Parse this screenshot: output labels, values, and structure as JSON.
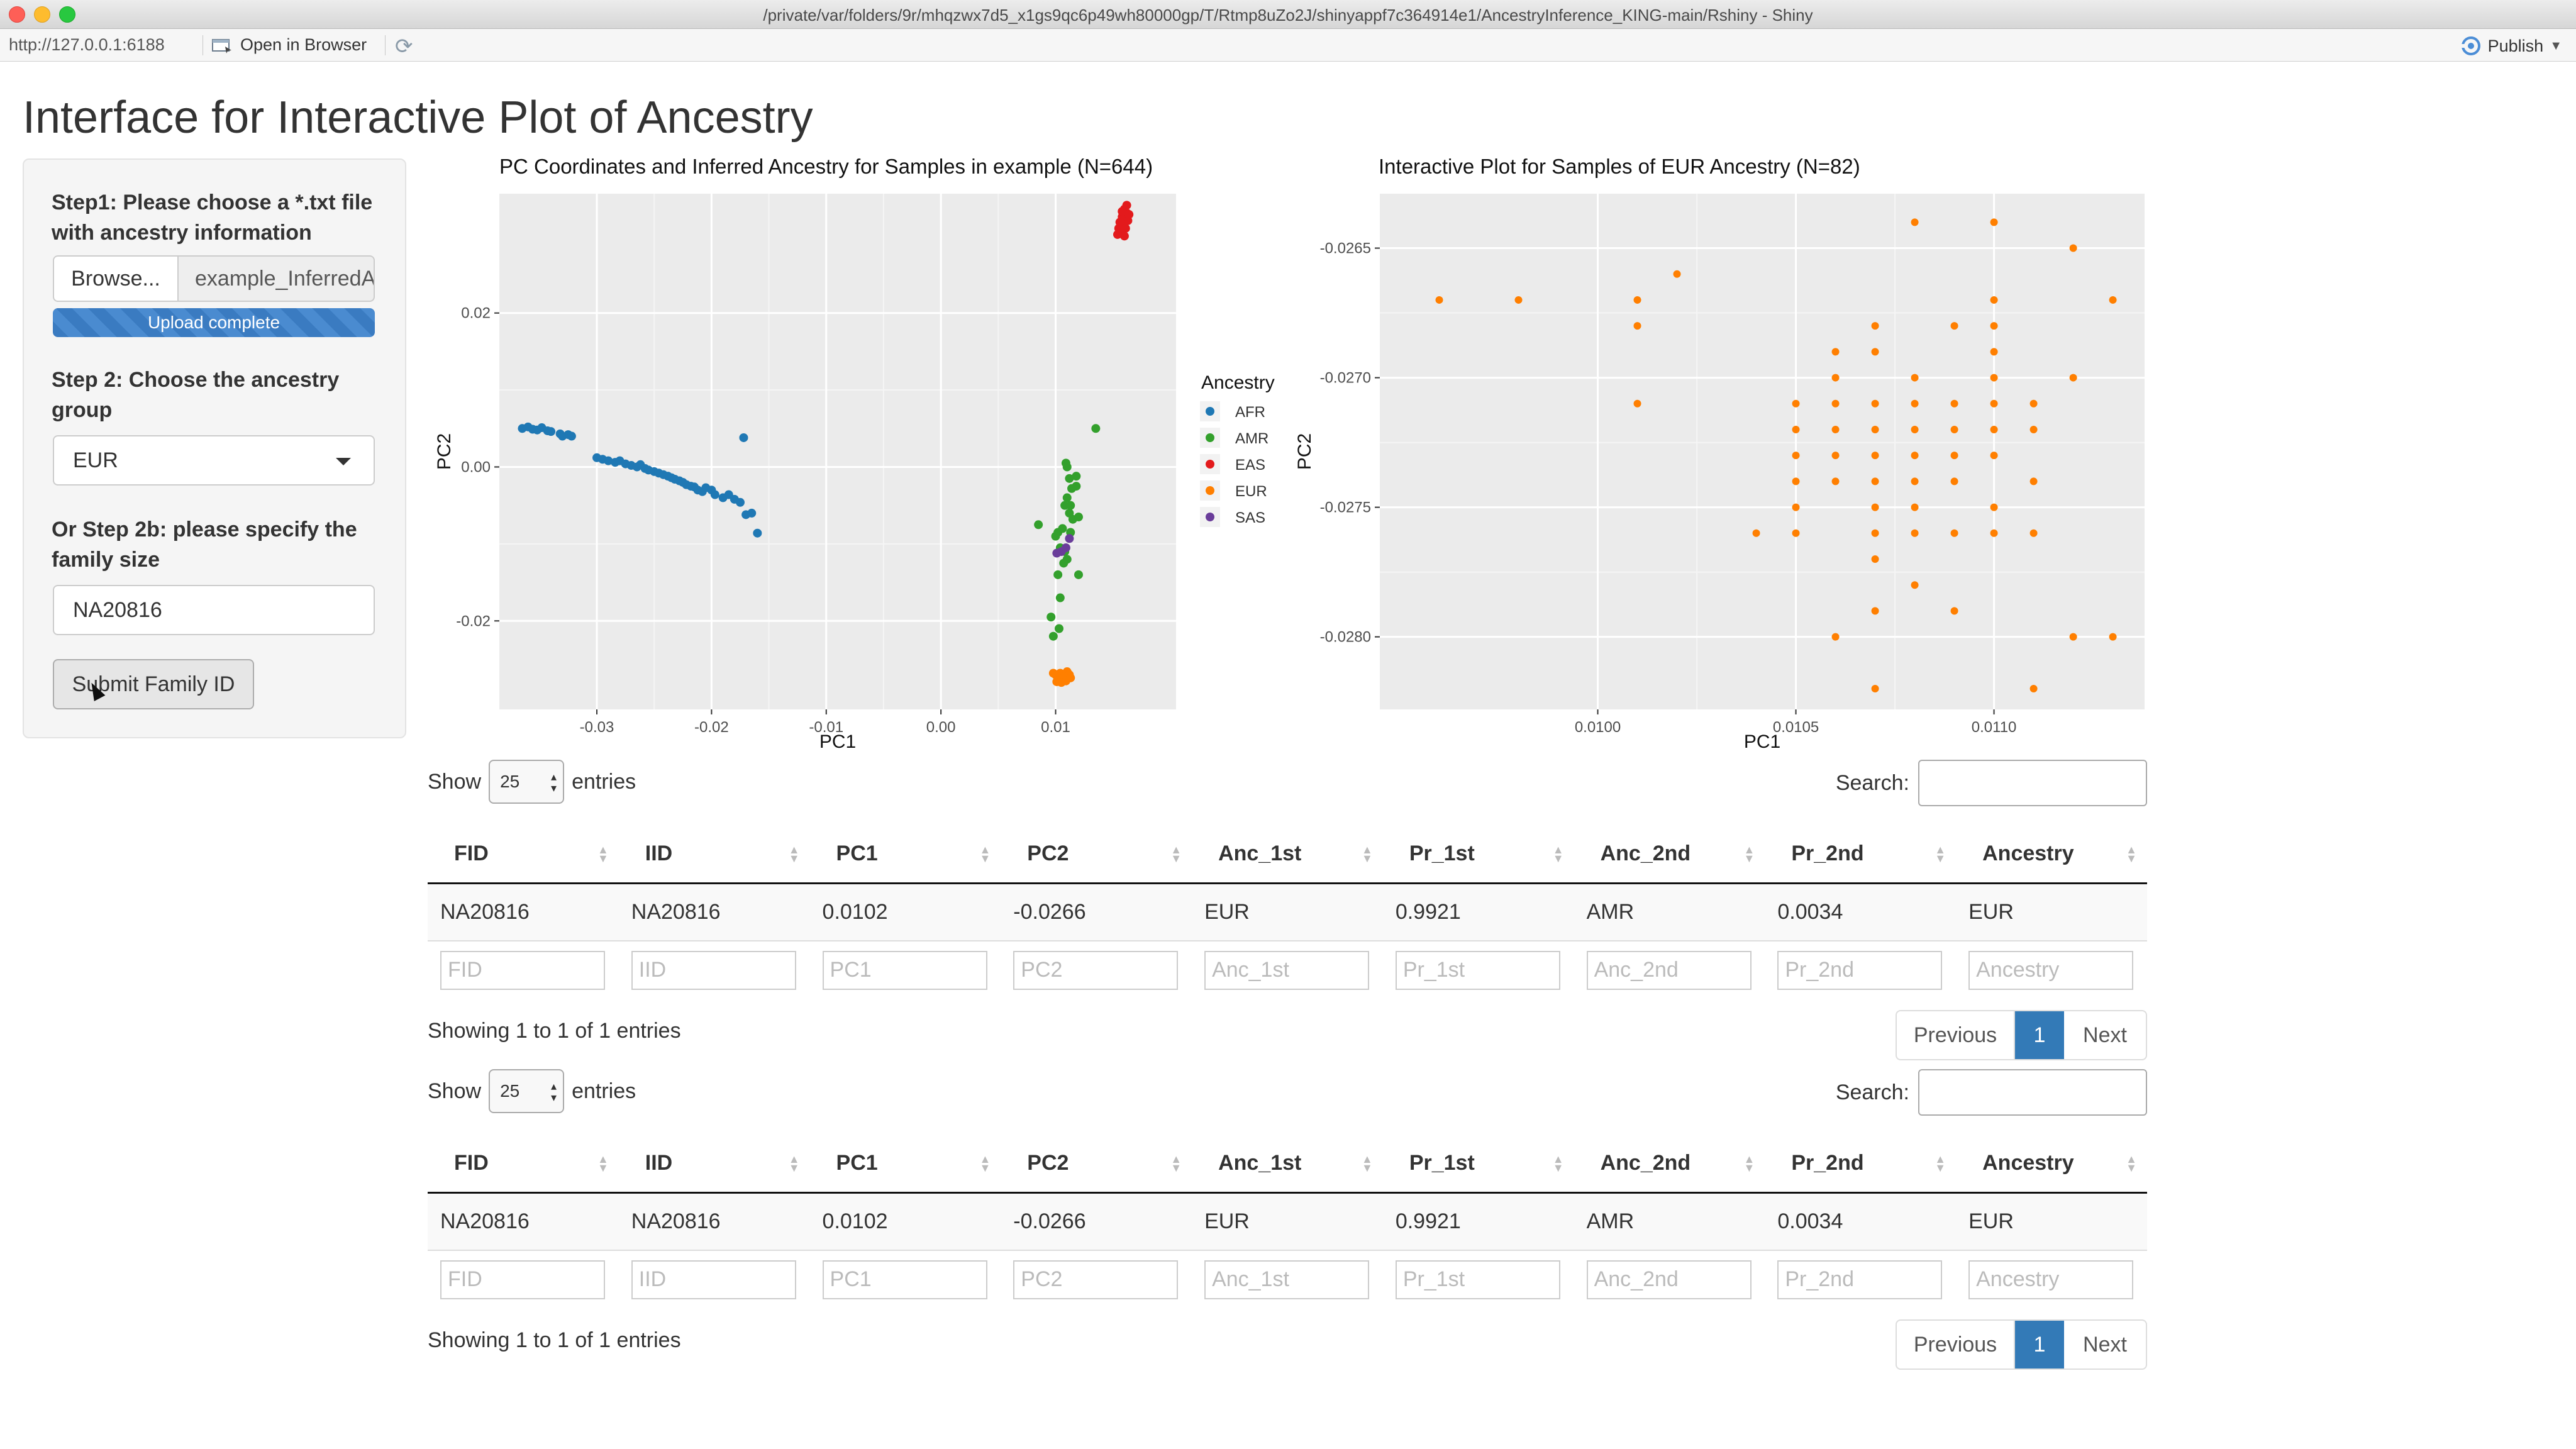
{
  "window": {
    "title": "/private/var/folders/9r/mhqzwx7d5_x1gs9qc6p49wh80000gp/T/Rtmp8uZo2J/shinyappf7c364914e1/AncestryInference_KING-main/Rshiny - Shiny"
  },
  "toolbar": {
    "url": "http://127.0.0.1:6188",
    "open_in_browser": "Open in Browser",
    "publish": "Publish"
  },
  "page": {
    "title": "Interface for Interactive Plot of Ancestry"
  },
  "sidebar": {
    "step1_label": "Step1: Please choose a *.txt file with ancestry information",
    "browse_label": "Browse...",
    "file_name": "example_InferredAncestry.txt",
    "upload_status": "Upload complete",
    "step2_label": "Step 2: Choose the ancestry group",
    "ancestry_selected": "EUR",
    "step2b_label": "Or Step 2b: please specify the family size",
    "family_id_value": "NA20816",
    "submit_label": "Submit Family ID"
  },
  "colors": {
    "AFR": "#1f78b4",
    "AMR": "#33a02c",
    "EAS": "#e31a1c",
    "EUR": "#ff7f00",
    "SAS": "#6a3d9a",
    "panel_bg": "#ebebeb",
    "accent": "#337ab7"
  },
  "chart_data": [
    {
      "type": "scatter",
      "title": "PC Coordinates and Inferred Ancestry for Samples in example (N=644)",
      "xlabel": "PC1",
      "ylabel": "PC2",
      "xlim": [
        -0.0385,
        0.0205
      ],
      "ylim": [
        -0.0315,
        0.0355
      ],
      "xticks": [
        -0.03,
        -0.02,
        -0.01,
        0.0,
        0.01
      ],
      "xtick_labels": [
        "-0.03",
        "-0.02",
        "-0.01",
        "0.00",
        "0.01"
      ],
      "yticks": [
        0.02,
        0.0,
        -0.02
      ],
      "ytick_labels": [
        "0.02",
        "0.00",
        "-0.02"
      ],
      "grid": true,
      "legend_title": "Ancestry",
      "legend_position": "right",
      "series": [
        {
          "name": "AFR",
          "points": [
            [
              -0.0365,
              0.005
            ],
            [
              -0.036,
              0.0052
            ],
            [
              -0.0356,
              0.0049
            ],
            [
              -0.0352,
              0.0048
            ],
            [
              -0.0348,
              0.0051
            ],
            [
              -0.0343,
              0.0047
            ],
            [
              -0.034,
              0.0046
            ],
            [
              -0.0332,
              0.0043
            ],
            [
              -0.033,
              0.004
            ],
            [
              -0.0325,
              0.0042
            ],
            [
              -0.0322,
              0.004
            ],
            [
              -0.03,
              0.0012
            ],
            [
              -0.0295,
              0.001
            ],
            [
              -0.029,
              0.0008
            ],
            [
              -0.0284,
              0.0006
            ],
            [
              -0.028,
              0.0008
            ],
            [
              -0.0275,
              0.0004
            ],
            [
              -0.027,
              0.0002
            ],
            [
              -0.0265,
              0.0
            ],
            [
              -0.0262,
              0.0003
            ],
            [
              -0.0258,
              -0.0002
            ],
            [
              -0.0255,
              -0.0004
            ],
            [
              -0.025,
              -0.0006
            ],
            [
              -0.0246,
              -0.0008
            ],
            [
              -0.0242,
              -0.001
            ],
            [
              -0.0238,
              -0.0012
            ],
            [
              -0.0235,
              -0.0014
            ],
            [
              -0.0232,
              -0.0016
            ],
            [
              -0.0228,
              -0.0018
            ],
            [
              -0.0225,
              -0.002
            ],
            [
              -0.0222,
              -0.0023
            ],
            [
              -0.0218,
              -0.0025
            ],
            [
              -0.0215,
              -0.0026
            ],
            [
              -0.0212,
              -0.003
            ],
            [
              -0.0208,
              -0.0032
            ],
            [
              -0.0205,
              -0.0027
            ],
            [
              -0.02,
              -0.003
            ],
            [
              -0.0197,
              -0.0036
            ],
            [
              -0.019,
              -0.004
            ],
            [
              -0.0185,
              -0.0036
            ],
            [
              -0.018,
              -0.0042
            ],
            [
              -0.0175,
              -0.0046
            ],
            [
              -0.017,
              -0.0062
            ],
            [
              -0.0165,
              -0.006
            ],
            [
              -0.016,
              -0.0086
            ],
            [
              -0.0172,
              0.0038
            ]
          ]
        },
        {
          "name": "AMR",
          "points": [
            [
              0.0135,
              0.005
            ],
            [
              0.011,
              0.0
            ],
            [
              0.0112,
              -0.0015
            ],
            [
              0.0118,
              -0.0012
            ],
            [
              0.0108,
              -0.005
            ],
            [
              0.0115,
              -0.0068
            ],
            [
              0.012,
              -0.0065
            ],
            [
              0.0113,
              -0.0085
            ],
            [
              0.011,
              -0.012
            ],
            [
              0.0104,
              -0.017
            ],
            [
              0.0098,
              -0.022
            ],
            [
              0.0103,
              -0.021
            ],
            [
              0.0085,
              -0.0075
            ],
            [
              0.0108,
              -0.011
            ],
            [
              0.0102,
              -0.0085
            ],
            [
              0.011,
              -0.004
            ],
            [
              0.0118,
              -0.0025
            ],
            [
              0.0109,
              0.0005
            ],
            [
              0.0102,
              -0.014
            ],
            [
              0.0096,
              -0.0195
            ],
            [
              0.01,
              -0.009
            ],
            [
              0.0107,
              -0.0125
            ],
            [
              0.0112,
              -0.006
            ],
            [
              0.0106,
              -0.008
            ],
            [
              0.0114,
              -0.0028
            ],
            [
              0.0104,
              -0.0105
            ],
            [
              0.012,
              -0.014
            ],
            [
              0.0113,
              -0.005
            ]
          ]
        },
        {
          "name": "EAS",
          "points": [
            [
              0.016,
              0.0335
            ],
            [
              0.0162,
              0.033
            ],
            [
              0.0158,
              0.0325
            ],
            [
              0.0163,
              0.032
            ],
            [
              0.0159,
              0.0315
            ],
            [
              0.0161,
              0.031
            ],
            [
              0.0157,
              0.0305
            ],
            [
              0.0164,
              0.0328
            ],
            [
              0.0156,
              0.0318
            ],
            [
              0.016,
              0.03
            ],
            [
              0.0155,
              0.031
            ],
            [
              0.0162,
              0.034
            ],
            [
              0.0158,
              0.0332
            ],
            [
              0.0154,
              0.0302
            ]
          ]
        },
        {
          "name": "EUR",
          "points": [
            [
              0.01,
              -0.027
            ],
            [
              0.0104,
              -0.0268
            ],
            [
              0.0108,
              -0.0272
            ],
            [
              0.0106,
              -0.0276
            ],
            [
              0.011,
              -0.0266
            ],
            [
              0.0102,
              -0.0274
            ],
            [
              0.0112,
              -0.027
            ],
            [
              0.0098,
              -0.0268
            ],
            [
              0.0105,
              -0.028
            ],
            [
              0.0109,
              -0.0278
            ],
            [
              0.0101,
              -0.0279
            ],
            [
              0.0113,
              -0.0274
            ]
          ]
        },
        {
          "name": "SAS",
          "points": [
            [
              0.0105,
              -0.011
            ],
            [
              0.0109,
              -0.0105
            ],
            [
              0.0112,
              -0.0093
            ],
            [
              0.0101,
              -0.0112
            ]
          ]
        }
      ]
    },
    {
      "type": "scatter",
      "title": "Interactive Plot for Samples of EUR Ancestry (N=82)",
      "xlabel": "PC1",
      "ylabel": "PC2",
      "xlim": [
        0.00945,
        0.01138
      ],
      "ylim": [
        -0.02828,
        -0.02629
      ],
      "xticks": [
        0.01,
        0.0105,
        0.011
      ],
      "xtick_labels": [
        "0.0100",
        "0.0105",
        "0.0110"
      ],
      "yticks": [
        -0.0265,
        -0.027,
        -0.0275,
        -0.028
      ],
      "ytick_labels": [
        "-0.0265",
        "-0.0270",
        "-0.0275",
        "-0.0280"
      ],
      "grid": true,
      "series": [
        {
          "name": "EUR",
          "points": [
            [
              0.0096,
              -0.0267
            ],
            [
              0.0098,
              -0.0267
            ],
            [
              0.0101,
              -0.0267
            ],
            [
              0.0101,
              -0.0268
            ],
            [
              0.0101,
              -0.0271
            ],
            [
              0.0102,
              -0.0266
            ],
            [
              0.0104,
              -0.0276
            ],
            [
              0.0105,
              -0.0271
            ],
            [
              0.0105,
              -0.0272
            ],
            [
              0.0105,
              -0.0273
            ],
            [
              0.0105,
              -0.0274
            ],
            [
              0.0105,
              -0.0275
            ],
            [
              0.0105,
              -0.0276
            ],
            [
              0.0106,
              -0.027
            ],
            [
              0.0106,
              -0.0271
            ],
            [
              0.0106,
              -0.0272
            ],
            [
              0.0106,
              -0.0273
            ],
            [
              0.0106,
              -0.0274
            ],
            [
              0.0106,
              -0.0269
            ],
            [
              0.0106,
              -0.028
            ],
            [
              0.0107,
              -0.0268
            ],
            [
              0.0107,
              -0.0269
            ],
            [
              0.0107,
              -0.0271
            ],
            [
              0.0107,
              -0.0272
            ],
            [
              0.0107,
              -0.0273
            ],
            [
              0.0107,
              -0.0274
            ],
            [
              0.0107,
              -0.0275
            ],
            [
              0.0107,
              -0.0276
            ],
            [
              0.0107,
              -0.0277
            ],
            [
              0.0107,
              -0.0279
            ],
            [
              0.0107,
              -0.0282
            ],
            [
              0.0108,
              -0.0264
            ],
            [
              0.0108,
              -0.027
            ],
            [
              0.0108,
              -0.0271
            ],
            [
              0.0108,
              -0.0272
            ],
            [
              0.0108,
              -0.0273
            ],
            [
              0.0108,
              -0.0274
            ],
            [
              0.0108,
              -0.0275
            ],
            [
              0.0108,
              -0.0276
            ],
            [
              0.0108,
              -0.0278
            ],
            [
              0.0109,
              -0.0268
            ],
            [
              0.0109,
              -0.0271
            ],
            [
              0.0109,
              -0.0272
            ],
            [
              0.0109,
              -0.0273
            ],
            [
              0.0109,
              -0.0274
            ],
            [
              0.0109,
              -0.0276
            ],
            [
              0.0109,
              -0.0279
            ],
            [
              0.011,
              -0.0264
            ],
            [
              0.011,
              -0.0267
            ],
            [
              0.011,
              -0.0268
            ],
            [
              0.011,
              -0.0269
            ],
            [
              0.011,
              -0.027
            ],
            [
              0.011,
              -0.0271
            ],
            [
              0.011,
              -0.0272
            ],
            [
              0.011,
              -0.0273
            ],
            [
              0.011,
              -0.0275
            ],
            [
              0.011,
              -0.0276
            ],
            [
              0.0111,
              -0.0271
            ],
            [
              0.0111,
              -0.0272
            ],
            [
              0.0111,
              -0.0274
            ],
            [
              0.0111,
              -0.0276
            ],
            [
              0.0111,
              -0.0282
            ],
            [
              0.0112,
              -0.0265
            ],
            [
              0.0112,
              -0.027
            ],
            [
              0.0112,
              -0.028
            ],
            [
              0.0113,
              -0.0267
            ],
            [
              0.0113,
              -0.028
            ]
          ]
        }
      ]
    }
  ],
  "tables": [
    {
      "show_label": "Show",
      "entries_label": "entries",
      "page_length": "25",
      "search_label": "Search:",
      "columns": [
        "FID",
        "IID",
        "PC1",
        "PC2",
        "Anc_1st",
        "Pr_1st",
        "Anc_2nd",
        "Pr_2nd",
        "Ancestry"
      ],
      "rows": [
        [
          "NA20816",
          "NA20816",
          "0.0102",
          "-0.0266",
          "EUR",
          "0.9921",
          "AMR",
          "0.0034",
          "EUR"
        ]
      ],
      "info": "Showing 1 to 1 of 1 entries",
      "pager": {
        "previous": "Previous",
        "current": "1",
        "next": "Next"
      }
    },
    {
      "show_label": "Show",
      "entries_label": "entries",
      "page_length": "25",
      "search_label": "Search:",
      "columns": [
        "FID",
        "IID",
        "PC1",
        "PC2",
        "Anc_1st",
        "Pr_1st",
        "Anc_2nd",
        "Pr_2nd",
        "Ancestry"
      ],
      "rows": [
        [
          "NA20816",
          "NA20816",
          "0.0102",
          "-0.0266",
          "EUR",
          "0.9921",
          "AMR",
          "0.0034",
          "EUR"
        ]
      ],
      "info": "Showing 1 to 1 of 1 entries",
      "pager": {
        "previous": "Previous",
        "current": "1",
        "next": "Next"
      }
    }
  ]
}
